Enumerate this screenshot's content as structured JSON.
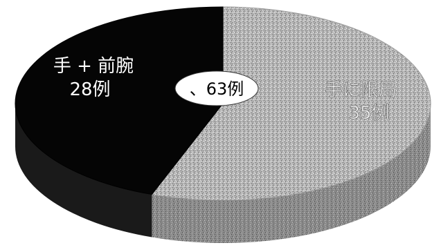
{
  "colors": {
    "dark_slice": "#050505",
    "light_slice": "#b8b8b8",
    "light_slice_side": "#8e8e8e",
    "dark_slice_side": "#1a1a1a",
    "dark_label": "#ffffff",
    "light_label": "#f4f4f4",
    "total_bubble": "#ffffff"
  },
  "chart_data": {
    "type": "pie",
    "style": "3d",
    "total_label": "、63例",
    "slices": [
      {
        "label": "手に限局",
        "value_label": "35例",
        "value": 35,
        "color": "#b8b8b8"
      },
      {
        "label": "手 + 前腕",
        "value_label": "28例",
        "value": 28,
        "color": "#050505"
      }
    ]
  }
}
